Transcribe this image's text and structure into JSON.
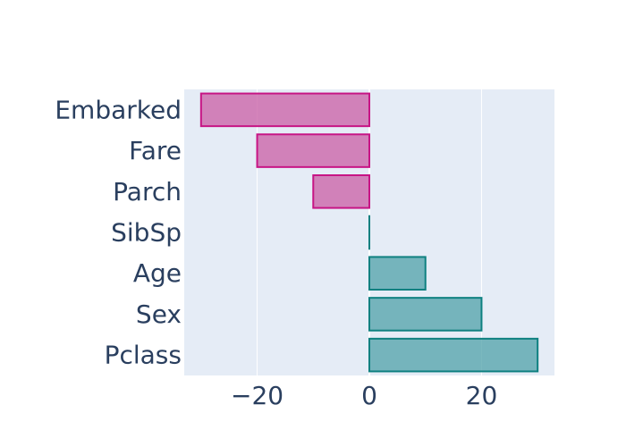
{
  "chart_data": {
    "type": "bar",
    "orientation": "horizontal",
    "title": "",
    "xlabel": "",
    "ylabel": "",
    "categories": [
      "Embarked",
      "Fare",
      "Parch",
      "SibSp",
      "Age",
      "Sex",
      "Pclass"
    ],
    "values": [
      -30,
      -20,
      -10,
      0,
      10,
      20,
      30
    ],
    "xlim": [
      -33,
      33
    ],
    "x_ticks": [
      -20,
      0,
      20
    ],
    "x_tick_labels": [
      "−20",
      "0",
      "20"
    ],
    "grid": true,
    "legend": "none",
    "colors": {
      "negative_fill": "#cc66aa",
      "negative_stroke": "#c71585",
      "positive_fill": "#4fa1a8",
      "positive_stroke": "#0e8080",
      "plot_background": "#e5ecf6",
      "gridline": "#ffffff",
      "text": "#2a3f5f"
    }
  }
}
